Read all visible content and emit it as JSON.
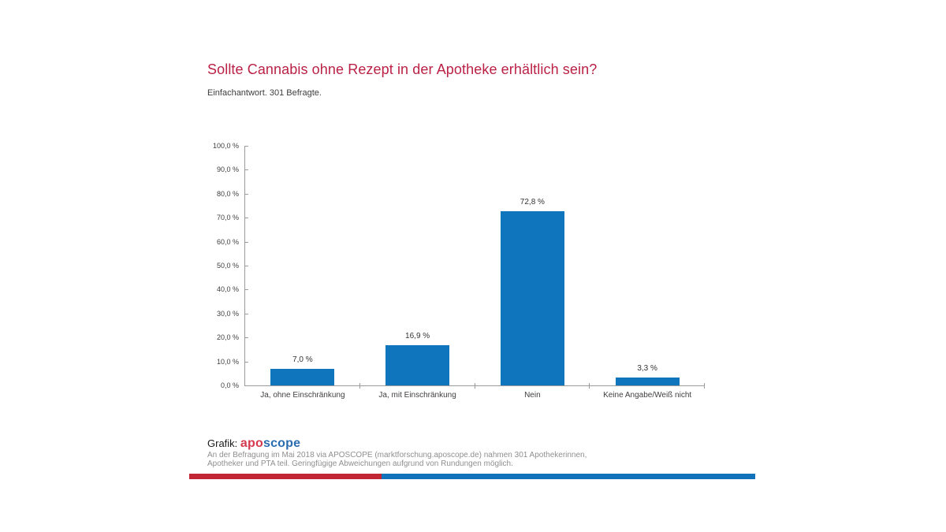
{
  "header": {
    "title": "Sollte Cannabis ohne Rezept in der Apotheke erhältlich sein?",
    "title_color": "#ba2145",
    "subtitle": "Einfachantwort. 301 Befragte."
  },
  "chart_data": {
    "type": "bar",
    "categories": [
      "Ja, ohne Einschränkung",
      "Ja, mit Einschränkung",
      "Nein",
      "Keine Angabe/Weiß nicht"
    ],
    "values": [
      7.0,
      16.9,
      72.8,
      3.3
    ],
    "value_labels": [
      "7,0 %",
      "16,9 %",
      "72,8 %",
      "3,3 %"
    ],
    "title": "Sollte Cannabis ohne Rezept in der Apotheke erhältlich sein?",
    "xlabel": "",
    "ylabel": "",
    "ylim": [
      0,
      100
    ],
    "y_tick_step": 10,
    "y_tick_labels": [
      "0,0 %",
      "10,0 %",
      "20,0 %",
      "30,0 %",
      "40,0 %",
      "50,0 %",
      "60,0 %",
      "70,0 %",
      "80,0 %",
      "90,0 %",
      "100,0 %"
    ],
    "bar_color": "#0f76bd",
    "grid": false,
    "legend": false
  },
  "footer": {
    "credit_label": "Grafik:",
    "logo": {
      "part1": "apo",
      "part2": "scope",
      "part1_color": "#d6384e",
      "part2_color": "#2a6cb0"
    },
    "footnote_line1": "An der Befragung im Mai 2018 via APOSCOPE (marktforschung.aposcope.de) nahmen 301 Apothekerinnen,",
    "footnote_line2": "Apotheker und PTA teil. Geringfügige Abweichungen aufgrund von Rundungen möglich.",
    "stripe": {
      "red_color": "#c22533",
      "blue_color": "#1273bb"
    }
  }
}
